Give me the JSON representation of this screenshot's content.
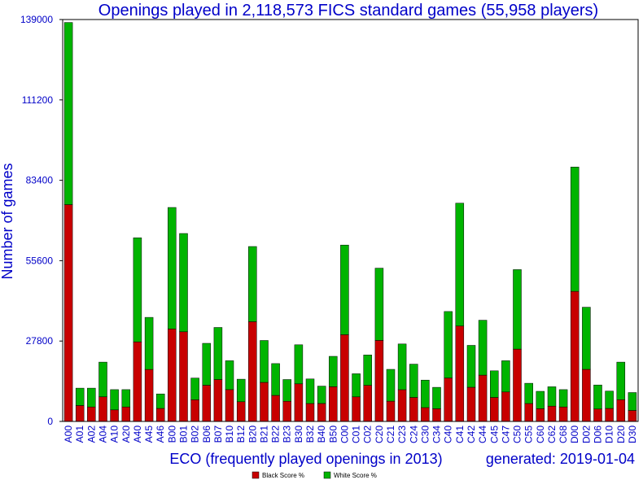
{
  "colors": {
    "black_score": "#c80000",
    "white_score": "#00b400",
    "text": "#0000c8",
    "bar_border": "#000000",
    "frame": "#000000",
    "grid": "#bbbbbb"
  },
  "chart_data": {
    "type": "bar",
    "stacked": true,
    "title": "Openings played in 2,118,573 FICS standard games (55,958 players)",
    "xlabel": "ECO (frequently played openings in 2013)",
    "ylabel": "Number of games",
    "generated": "generated: 2019-01-04",
    "ylim": [
      0,
      139000
    ],
    "yticks": [
      0,
      27800,
      55600,
      83400,
      111200,
      139000
    ],
    "ytick_labels": [
      "0",
      "27800",
      "55600",
      "83400",
      "111200",
      "139000"
    ],
    "grid": false,
    "legend_position": "bottom-center",
    "categories": [
      "A00",
      "A01",
      "A02",
      "A04",
      "A10",
      "A20",
      "A40",
      "A45",
      "A46",
      "B00",
      "B01",
      "B02",
      "B06",
      "B07",
      "B10",
      "B12",
      "B20",
      "B21",
      "B22",
      "B23",
      "B30",
      "B32",
      "B40",
      "B50",
      "C00",
      "C01",
      "C02",
      "C20",
      "C21",
      "C23",
      "C24",
      "C30",
      "C34",
      "C40",
      "C41",
      "C42",
      "C44",
      "C45",
      "C47",
      "C50",
      "C55",
      "C60",
      "C62",
      "C68",
      "D00",
      "D02",
      "D06",
      "D10",
      "D20",
      "D30"
    ],
    "series": [
      {
        "name": "Black Score %",
        "color": "#c80000",
        "values": [
          75000,
          5500,
          5000,
          8500,
          4000,
          5000,
          27500,
          18000,
          4500,
          32000,
          31000,
          7500,
          12500,
          14500,
          11000,
          6800,
          34500,
          13500,
          9000,
          7000,
          13000,
          6200,
          6200,
          12000,
          30000,
          8500,
          12500,
          28000,
          7000,
          11000,
          8300,
          4800,
          4400,
          15000,
          33000,
          11800,
          16000,
          8300,
          10200,
          25000,
          6200,
          4400,
          5300,
          5000,
          45000,
          18000,
          4300,
          4500,
          7500,
          3800
        ]
      },
      {
        "name": "White Score %",
        "color": "#00b400",
        "values": [
          63000,
          6000,
          6500,
          12000,
          7000,
          6000,
          36000,
          18000,
          5000,
          42000,
          34000,
          7500,
          14500,
          18000,
          10000,
          7800,
          26000,
          14500,
          11000,
          7500,
          13500,
          8500,
          6000,
          10500,
          31000,
          8000,
          10500,
          25000,
          11000,
          15800,
          11500,
          9500,
          7400,
          23000,
          42500,
          14500,
          19000,
          9200,
          10800,
          27500,
          7000,
          6000,
          6700,
          6000,
          43000,
          21500,
          8300,
          6000,
          13000,
          6200
        ]
      }
    ]
  }
}
